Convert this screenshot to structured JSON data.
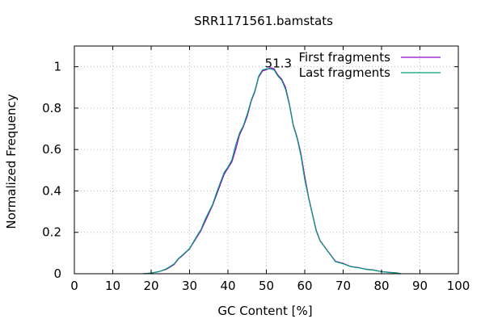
{
  "chart_data": {
    "type": "line",
    "title": "SRR1171561.bamstats",
    "xlabel": "GC Content [%]",
    "ylabel": "Normalized Frequency",
    "xlim": [
      0,
      100
    ],
    "ylim": [
      0,
      1.1
    ],
    "xticks": [
      "0",
      "10",
      "20",
      "30",
      "40",
      "50",
      "60",
      "70",
      "80",
      "90",
      "100"
    ],
    "yticks": [
      "0",
      "0.2",
      "0.4",
      "0.6",
      "0.8",
      "1"
    ],
    "grid": true,
    "legend_position": "top-right",
    "annotation": {
      "text": "51.3",
      "x": 51.3,
      "y": 1.0
    },
    "series": [
      {
        "name": "First fragments",
        "color": "#9400d3",
        "x": [
          18,
          20,
          22,
          24,
          26,
          27,
          28,
          30,
          32,
          33,
          34,
          36,
          37,
          38,
          39,
          40,
          41,
          42,
          43,
          44,
          45,
          46,
          47,
          48,
          49,
          50,
          51,
          52,
          53,
          54,
          55,
          56,
          57,
          58,
          59,
          60,
          61,
          62,
          63,
          64,
          66,
          68,
          70,
          72,
          74,
          76,
          78,
          80,
          82,
          84,
          85
        ],
        "y": [
          0,
          0.003,
          0.01,
          0.022,
          0.045,
          0.07,
          0.085,
          0.12,
          0.18,
          0.21,
          0.25,
          0.33,
          0.38,
          0.43,
          0.48,
          0.51,
          0.54,
          0.6,
          0.67,
          0.71,
          0.76,
          0.83,
          0.88,
          0.95,
          0.98,
          0.985,
          0.995,
          0.99,
          0.96,
          0.94,
          0.9,
          0.82,
          0.72,
          0.66,
          0.58,
          0.47,
          0.37,
          0.29,
          0.21,
          0.16,
          0.11,
          0.06,
          0.05,
          0.035,
          0.03,
          0.022,
          0.018,
          0.01,
          0.007,
          0.004,
          0
        ]
      },
      {
        "name": "Last fragments",
        "color": "#009e73",
        "x": [
          18,
          20,
          22,
          24,
          26,
          27,
          28,
          30,
          32,
          33,
          34,
          36,
          37,
          38,
          39,
          40,
          41,
          42,
          43,
          44,
          45,
          46,
          47,
          48,
          49,
          50,
          51,
          52,
          53,
          54,
          55,
          56,
          57,
          58,
          59,
          60,
          61,
          62,
          63,
          64,
          66,
          68,
          70,
          72,
          74,
          76,
          78,
          80,
          82,
          84,
          85
        ],
        "y": [
          0,
          0.003,
          0.01,
          0.024,
          0.048,
          0.072,
          0.088,
          0.122,
          0.185,
          0.215,
          0.26,
          0.335,
          0.39,
          0.44,
          0.49,
          0.515,
          0.55,
          0.62,
          0.68,
          0.715,
          0.77,
          0.835,
          0.885,
          0.955,
          0.985,
          0.99,
          0.99,
          0.985,
          0.955,
          0.935,
          0.89,
          0.815,
          0.715,
          0.655,
          0.57,
          0.455,
          0.365,
          0.285,
          0.205,
          0.158,
          0.108,
          0.058,
          0.048,
          0.034,
          0.029,
          0.021,
          0.017,
          0.01,
          0.006,
          0.004,
          0
        ]
      }
    ]
  }
}
